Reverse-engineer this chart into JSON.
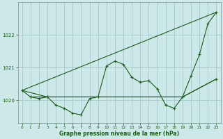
{
  "bg_color": "#cce8e8",
  "grid_color": "#aacccc",
  "line_color": "#1a5c1a",
  "title": "Graphe pression niveau de la mer (hPa)",
  "xlim": [
    -0.5,
    23.5
  ],
  "ylim": [
    1019.3,
    1023.0
  ],
  "yticks": [
    1020,
    1021,
    1022
  ],
  "xticks": [
    0,
    1,
    2,
    3,
    4,
    5,
    6,
    7,
    8,
    9,
    10,
    11,
    12,
    13,
    14,
    15,
    16,
    17,
    18,
    19,
    20,
    21,
    22,
    23
  ],
  "series": [
    {
      "x": [
        0,
        1,
        2,
        3,
        4,
        5,
        6,
        7,
        8,
        9,
        10,
        11,
        12,
        13,
        14,
        15,
        16,
        17,
        18,
        19,
        20,
        21,
        22,
        23
      ],
      "y": [
        1020.3,
        1020.1,
        1020.05,
        1020.1,
        1019.85,
        1019.75,
        1019.6,
        1019.55,
        1020.05,
        1020.1,
        1021.05,
        1021.2,
        1021.1,
        1020.7,
        1020.55,
        1020.6,
        1020.35,
        1019.85,
        1019.75,
        1020.1,
        1020.75,
        1021.4,
        1022.35,
        1022.7
      ],
      "marker": "+"
    },
    {
      "x": [
        0,
        23
      ],
      "y": [
        1020.3,
        1022.7
      ],
      "marker": null
    },
    {
      "x": [
        0,
        3,
        19,
        23
      ],
      "y": [
        1020.3,
        1020.1,
        1020.1,
        1020.65
      ],
      "marker": null
    },
    {
      "x": [
        1,
        3,
        19,
        23
      ],
      "y": [
        1020.1,
        1020.1,
        1020.1,
        1020.65
      ],
      "marker": "+"
    }
  ]
}
